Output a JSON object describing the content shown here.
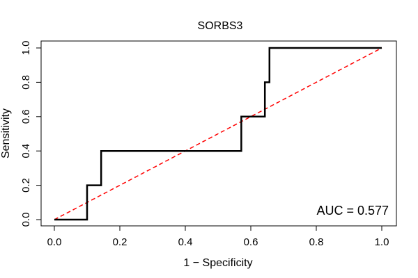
{
  "chart_data": {
    "type": "line",
    "title": "SORBS3",
    "xlabel": "1 − Specificity",
    "ylabel": "Sensitivity",
    "xlim": [
      0,
      1
    ],
    "ylim": [
      0,
      1
    ],
    "x_ticks": [
      "0.0",
      "0.2",
      "0.4",
      "0.6",
      "0.8",
      "1.0"
    ],
    "y_ticks": [
      "0.0",
      "0.2",
      "0.4",
      "0.6",
      "0.8",
      "1.0"
    ],
    "series": [
      {
        "color": "#000000",
        "points": [
          [
            0.0,
            0.0
          ],
          [
            0.1,
            0.0
          ],
          [
            0.1,
            0.2
          ],
          [
            0.143,
            0.2
          ],
          [
            0.143,
            0.4
          ],
          [
            0.571,
            0.4
          ],
          [
            0.571,
            0.6
          ],
          [
            0.643,
            0.6
          ],
          [
            0.643,
            0.8
          ],
          [
            0.657,
            0.8
          ],
          [
            0.657,
            1.0
          ],
          [
            1.0,
            1.0
          ]
        ]
      }
    ],
    "reference_line": {
      "color": "#ff0000",
      "style": "dashed",
      "points": [
        [
          0,
          0
        ],
        [
          1,
          1
        ]
      ]
    },
    "annotation": "AUC = 0.577"
  }
}
